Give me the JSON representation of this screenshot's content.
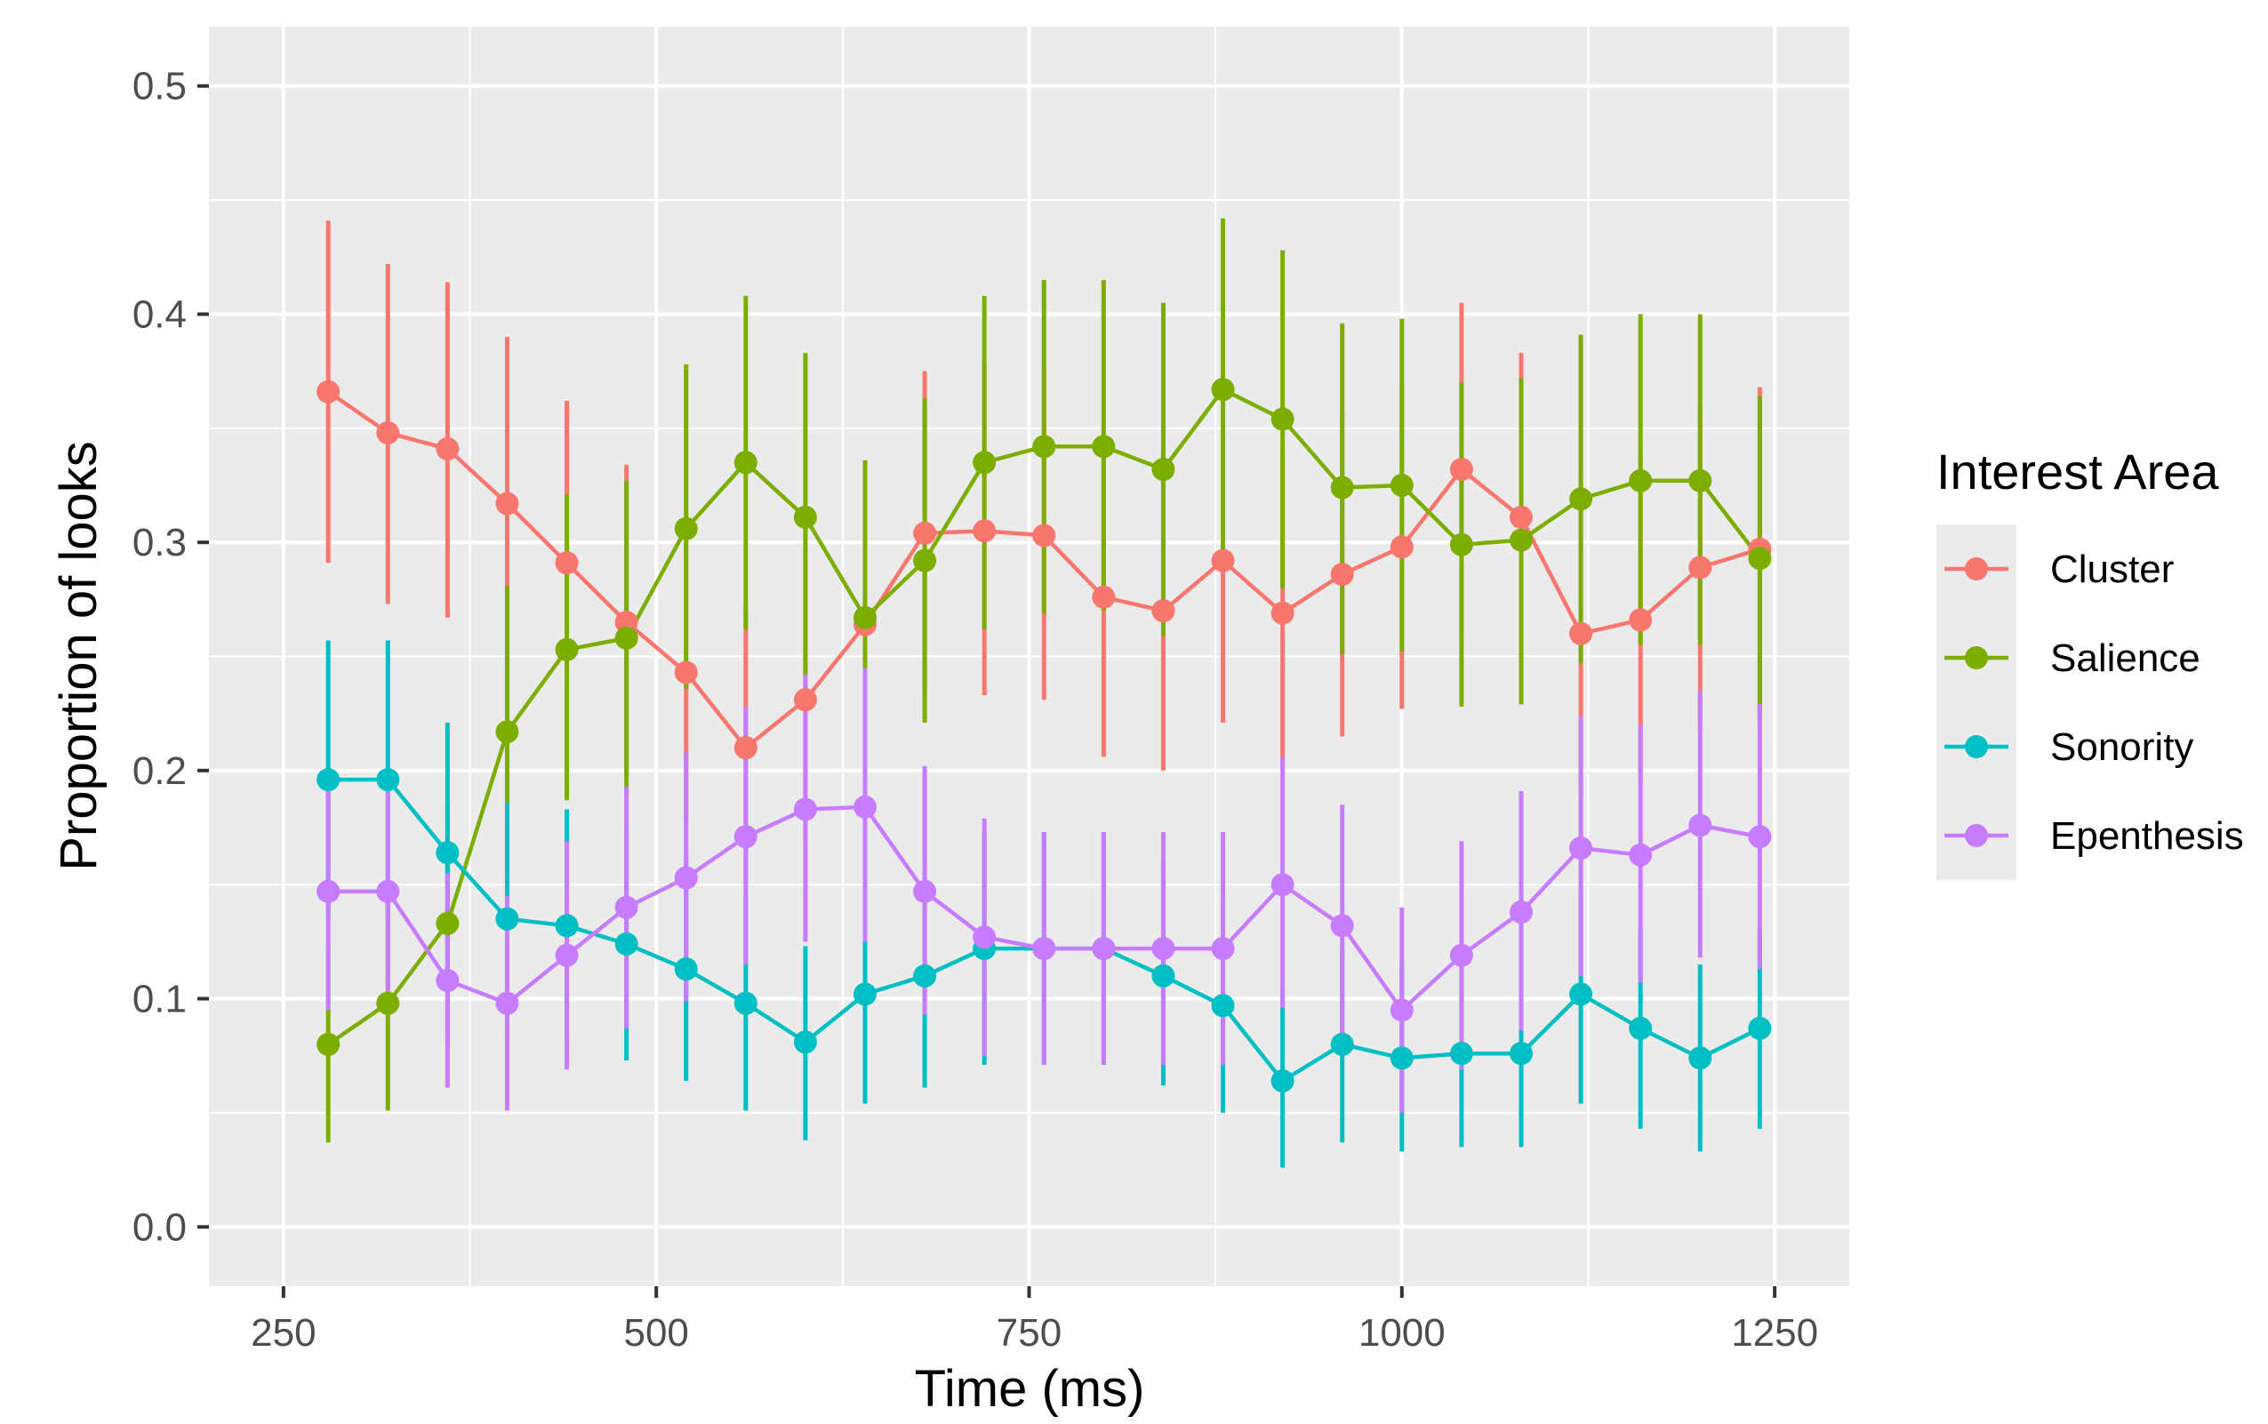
{
  "chart_data": {
    "type": "line",
    "title": "",
    "xlabel": "Time (ms)",
    "ylabel": "Proportion of looks",
    "xlim": [
      200,
      1300
    ],
    "ylim": [
      -0.026,
      0.526
    ],
    "x_ticks": [
      250,
      500,
      750,
      1000,
      1250
    ],
    "x_tick_labels": [
      "250",
      "500",
      "750",
      "1000",
      "1250"
    ],
    "y_ticks": [
      0.0,
      0.1,
      0.2,
      0.3,
      0.4,
      0.5
    ],
    "y_tick_labels": [
      "0.0",
      "0.1",
      "0.2",
      "0.3",
      "0.4",
      "0.5"
    ],
    "grid": true,
    "error_bars": true,
    "legend": {
      "title": "Interest Area",
      "position": "right"
    },
    "x": [
      280,
      320,
      360,
      400,
      440,
      480,
      520,
      560,
      600,
      640,
      680,
      720,
      760,
      800,
      840,
      880,
      920,
      960,
      1000,
      1040,
      1080,
      1120,
      1160,
      1200,
      1240
    ],
    "series": [
      {
        "name": "Cluster",
        "color": "#F8766D",
        "values": [
          0.366,
          0.348,
          0.341,
          0.317,
          0.291,
          0.265,
          0.243,
          0.21,
          0.231,
          0.264,
          0.304,
          0.305,
          0.303,
          0.276,
          0.27,
          0.292,
          0.269,
          0.286,
          0.298,
          0.332,
          0.311,
          0.26,
          0.266,
          0.289,
          0.297
        ],
        "lower": [
          0.291,
          0.273,
          0.267,
          0.244,
          0.22,
          0.198,
          0.178,
          0.15,
          0.169,
          0.199,
          0.234,
          0.233,
          0.231,
          0.206,
          0.2,
          0.221,
          0.2,
          0.215,
          0.227,
          0.258,
          0.24,
          0.19,
          0.195,
          0.218,
          0.226
        ],
        "upper": [
          0.441,
          0.422,
          0.414,
          0.39,
          0.362,
          0.334,
          0.31,
          0.271,
          0.294,
          0.33,
          0.375,
          0.378,
          0.376,
          0.347,
          0.34,
          0.364,
          0.339,
          0.358,
          0.369,
          0.405,
          0.383,
          0.33,
          0.338,
          0.36,
          0.368
        ]
      },
      {
        "name": "Salience",
        "color": "#7CAE00",
        "values": [
          0.08,
          0.098,
          0.133,
          0.217,
          0.253,
          0.258,
          0.306,
          0.335,
          0.311,
          0.267,
          0.292,
          0.335,
          0.342,
          0.342,
          0.332,
          0.367,
          0.354,
          0.324,
          0.325,
          0.299,
          0.301,
          0.319,
          0.327,
          0.327,
          0.293
        ],
        "lower": [
          0.037,
          0.051,
          0.08,
          0.155,
          0.187,
          0.19,
          0.236,
          0.262,
          0.24,
          0.199,
          0.221,
          0.262,
          0.269,
          0.27,
          0.259,
          0.293,
          0.28,
          0.251,
          0.252,
          0.228,
          0.229,
          0.247,
          0.255,
          0.255,
          0.222
        ],
        "upper": [
          0.123,
          0.145,
          0.186,
          0.281,
          0.321,
          0.327,
          0.378,
          0.408,
          0.383,
          0.336,
          0.363,
          0.408,
          0.415,
          0.415,
          0.405,
          0.442,
          0.428,
          0.396,
          0.398,
          0.37,
          0.372,
          0.391,
          0.4,
          0.4,
          0.364
        ]
      },
      {
        "name": "Sonority",
        "color": "#00BFC4",
        "values": [
          0.196,
          0.196,
          0.164,
          0.135,
          0.132,
          0.124,
          0.113,
          0.098,
          0.081,
          0.102,
          0.11,
          0.122,
          0.122,
          0.122,
          0.11,
          0.097,
          0.064,
          0.08,
          0.074,
          0.076,
          0.076,
          0.102,
          0.087,
          0.074,
          0.087
        ],
        "lower": [
          0.136,
          0.136,
          0.108,
          0.085,
          0.082,
          0.073,
          0.064,
          0.051,
          0.038,
          0.054,
          0.061,
          0.071,
          0.071,
          0.071,
          0.062,
          0.05,
          0.026,
          0.037,
          0.033,
          0.035,
          0.035,
          0.054,
          0.043,
          0.033,
          0.043
        ],
        "upper": [
          0.257,
          0.257,
          0.221,
          0.186,
          0.183,
          0.175,
          0.162,
          0.145,
          0.123,
          0.15,
          0.159,
          0.173,
          0.173,
          0.173,
          0.159,
          0.144,
          0.102,
          0.122,
          0.115,
          0.117,
          0.117,
          0.15,
          0.131,
          0.115,
          0.131
        ]
      },
      {
        "name": "Epenthesis",
        "color": "#C77CFF",
        "values": [
          0.147,
          0.147,
          0.108,
          0.098,
          0.119,
          0.14,
          0.153,
          0.171,
          0.183,
          0.184,
          0.147,
          0.127,
          0.122,
          0.122,
          0.122,
          0.122,
          0.15,
          0.132,
          0.095,
          0.119,
          0.138,
          0.166,
          0.163,
          0.176,
          0.171
        ],
        "lower": [
          0.095,
          0.095,
          0.061,
          0.051,
          0.069,
          0.087,
          0.099,
          0.115,
          0.125,
          0.125,
          0.093,
          0.075,
          0.071,
          0.071,
          0.071,
          0.071,
          0.096,
          0.08,
          0.05,
          0.069,
          0.086,
          0.11,
          0.107,
          0.118,
          0.113
        ],
        "upper": [
          0.199,
          0.199,
          0.155,
          0.145,
          0.169,
          0.193,
          0.208,
          0.228,
          0.242,
          0.245,
          0.202,
          0.179,
          0.173,
          0.173,
          0.173,
          0.173,
          0.206,
          0.185,
          0.14,
          0.169,
          0.191,
          0.224,
          0.22,
          0.235,
          0.229
        ]
      }
    ]
  }
}
